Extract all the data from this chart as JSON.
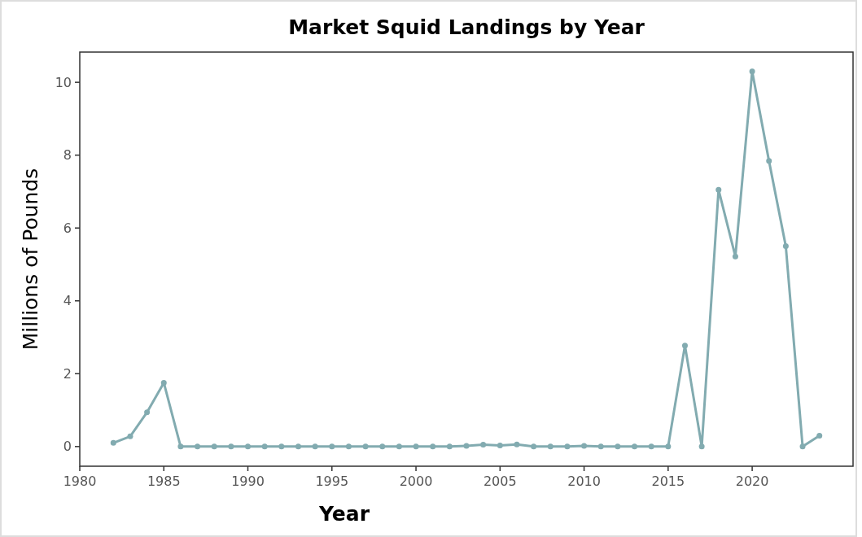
{
  "chart_data": {
    "type": "line",
    "title": "Market Squid Landings by Year",
    "xlabel": "Year",
    "ylabel": "Millions of Pounds",
    "x": [
      1982,
      1983,
      1984,
      1985,
      1986,
      1987,
      1988,
      1989,
      1990,
      1991,
      1992,
      1993,
      1994,
      1995,
      1996,
      1997,
      1998,
      1999,
      2000,
      2001,
      2002,
      2003,
      2004,
      2005,
      2006,
      2007,
      2008,
      2009,
      2010,
      2011,
      2012,
      2013,
      2014,
      2015,
      2016,
      2017,
      2018,
      2019,
      2020,
      2021,
      2022,
      2023,
      2024
    ],
    "series": [
      {
        "color": "#82abb0",
        "values": [
          0.1,
          0.28,
          0.94,
          1.75,
          0,
          0,
          0,
          0,
          0,
          0,
          0,
          0,
          0,
          0,
          0,
          0,
          0,
          0,
          0,
          0,
          0,
          0.02,
          0.05,
          0.03,
          0.06,
          0,
          0,
          0,
          0.02,
          0,
          0,
          0,
          0,
          0,
          2.77,
          0,
          7.05,
          5.22,
          10.3,
          7.84,
          5.5,
          0,
          0.3
        ]
      }
    ],
    "xlim": [
      1980,
      2026
    ],
    "xticks": [
      1980,
      1985,
      1990,
      1995,
      2000,
      2005,
      2010,
      2015,
      2020
    ],
    "ylim": [
      -0.54,
      10.83
    ],
    "yticks": [
      0,
      2,
      4,
      6,
      8,
      10
    ],
    "grid": false,
    "marker": "circle",
    "line_style": "solid"
  }
}
